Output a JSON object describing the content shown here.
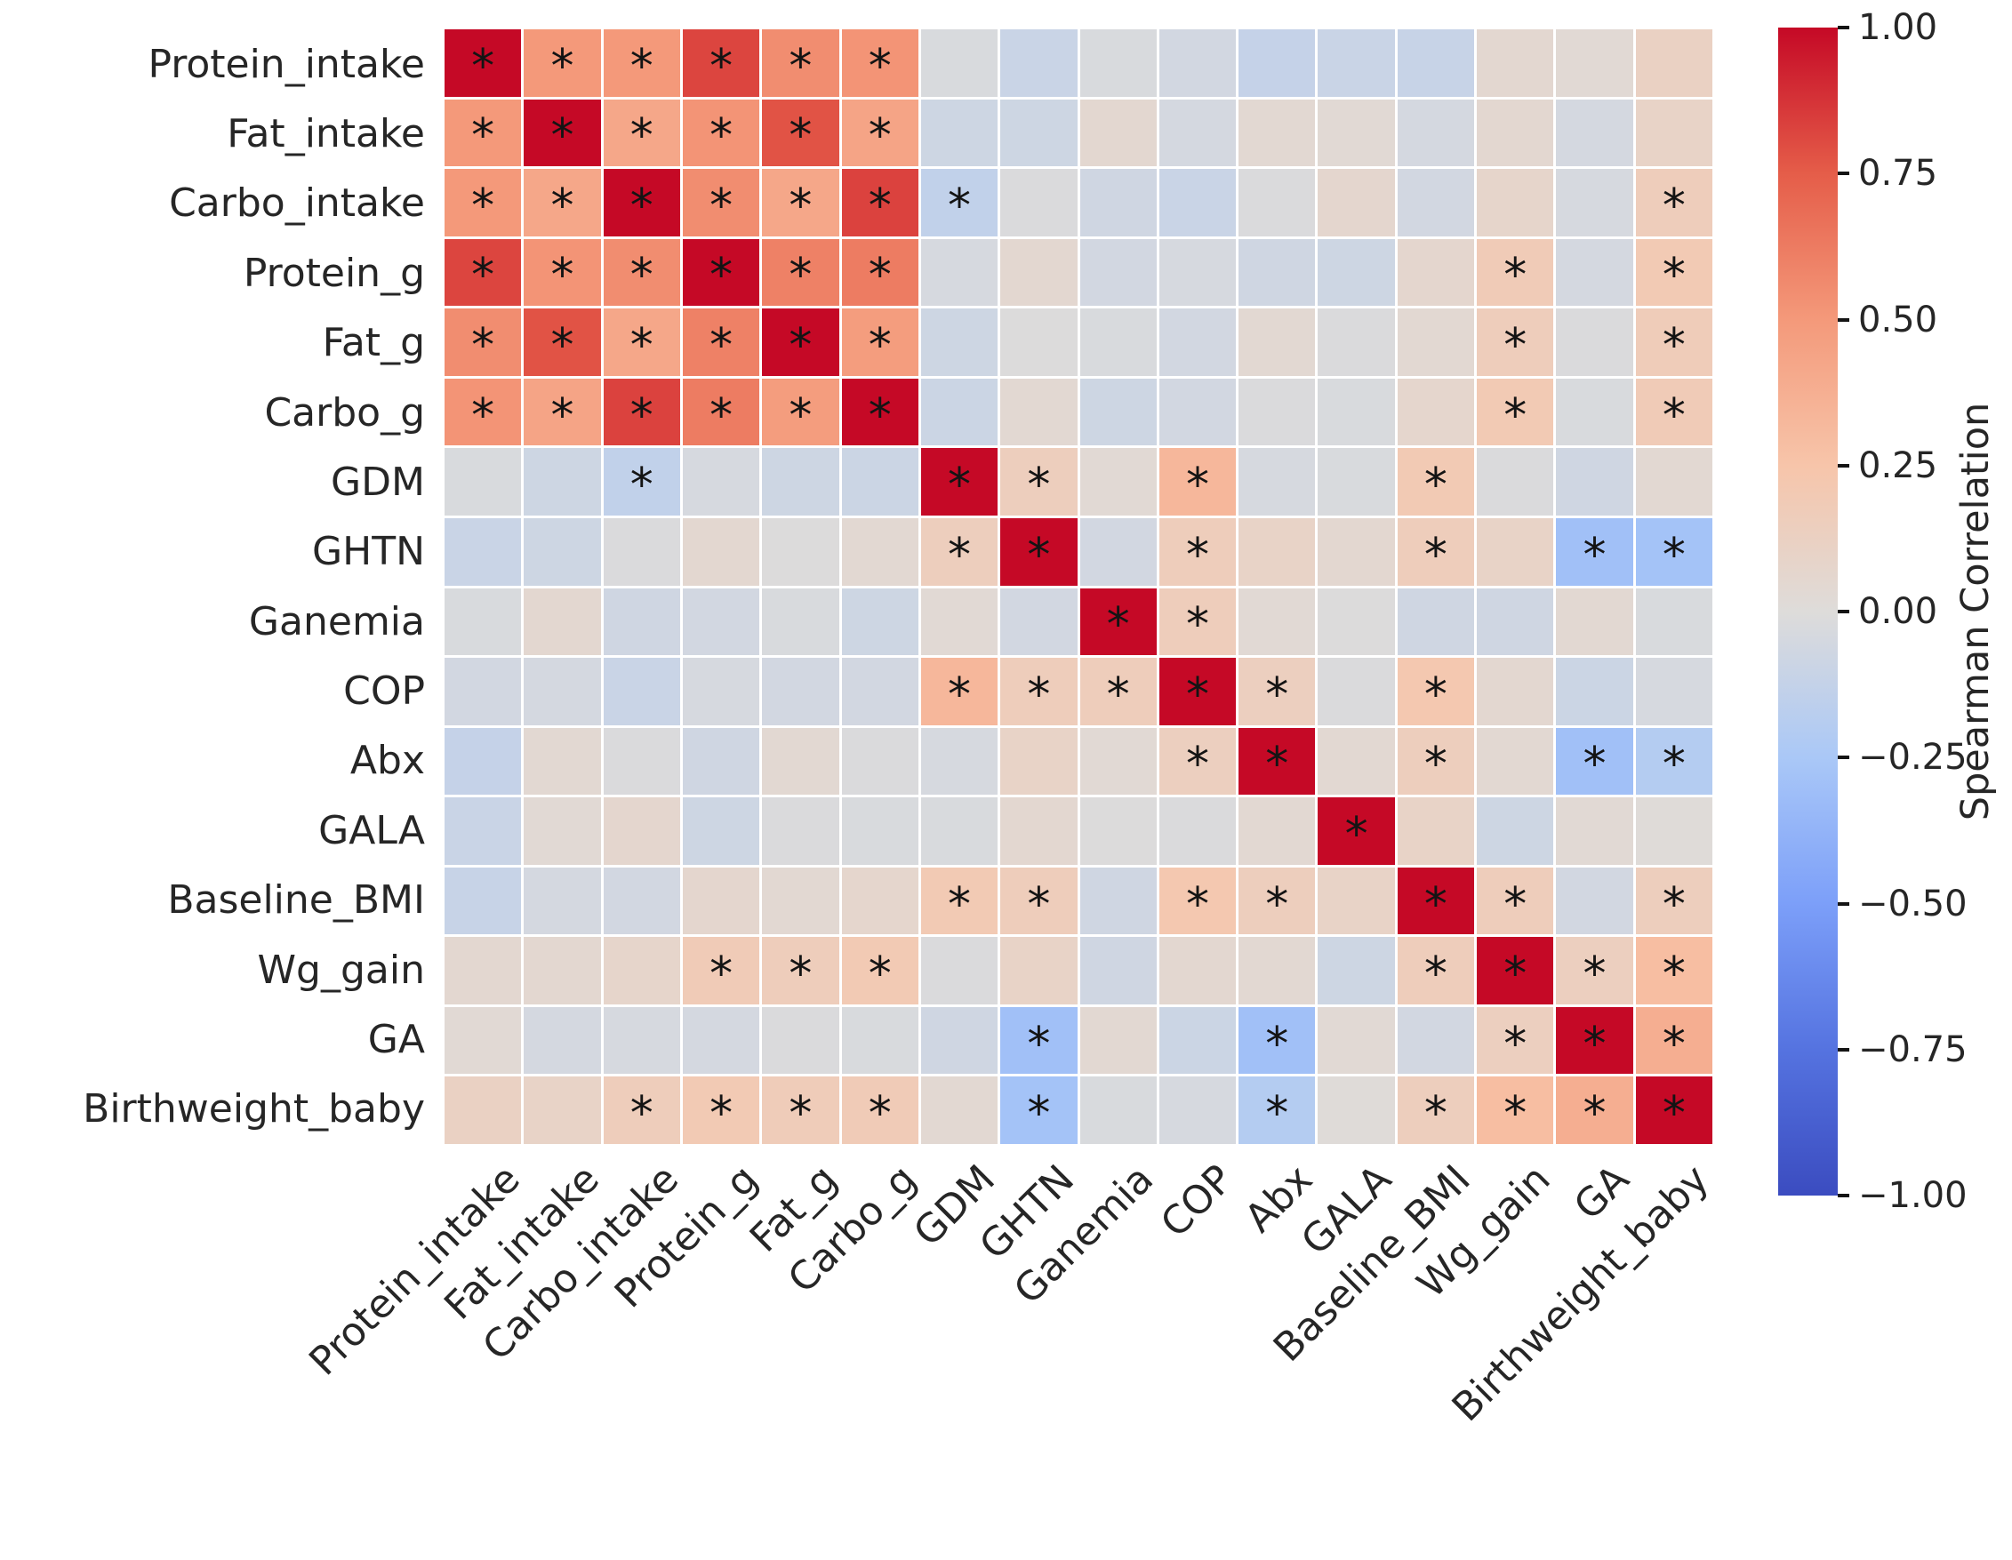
{
  "chart_data": {
    "type": "heatmap",
    "title": "",
    "variables": [
      "Protein_intake",
      "Fat_intake",
      "Carbo_intake",
      "Protein_g",
      "Fat_g",
      "Carbo_g",
      "GDM",
      "GHTN",
      "Ganemia",
      "COP",
      "Abx",
      "GALA",
      "Baseline_BMI",
      "Wg_gain",
      "GA",
      "Birthweight_baby"
    ],
    "matrix": [
      [
        1.0,
        0.5,
        0.5,
        0.82,
        0.55,
        0.52,
        -0.03,
        -0.1,
        -0.03,
        -0.06,
        -0.12,
        -0.1,
        -0.11,
        0.05,
        0.03,
        0.12
      ],
      [
        0.5,
        1.0,
        0.42,
        0.52,
        0.78,
        0.44,
        -0.08,
        -0.08,
        0.05,
        -0.05,
        0.04,
        0.03,
        -0.05,
        0.05,
        -0.05,
        0.1
      ],
      [
        0.5,
        0.42,
        1.0,
        0.55,
        0.42,
        0.83,
        -0.14,
        -0.02,
        -0.07,
        -0.1,
        -0.02,
        0.06,
        -0.06,
        0.08,
        -0.04,
        0.16
      ],
      [
        0.82,
        0.52,
        0.55,
        1.0,
        0.6,
        0.62,
        -0.04,
        0.05,
        -0.06,
        -0.04,
        -0.07,
        -0.08,
        0.06,
        0.18,
        -0.05,
        0.2
      ],
      [
        0.55,
        0.78,
        0.42,
        0.6,
        1.0,
        0.48,
        -0.08,
        -0.01,
        -0.03,
        -0.06,
        0.04,
        -0.02,
        0.04,
        0.16,
        -0.02,
        0.17
      ],
      [
        0.52,
        0.44,
        0.83,
        0.62,
        0.48,
        1.0,
        -0.09,
        0.04,
        -0.08,
        -0.06,
        -0.02,
        -0.03,
        0.07,
        0.2,
        -0.03,
        0.18
      ],
      [
        -0.03,
        -0.08,
        -0.14,
        -0.04,
        -0.08,
        -0.09,
        1.0,
        0.15,
        0.03,
        0.33,
        -0.04,
        -0.03,
        0.2,
        -0.02,
        -0.07,
        0.04
      ],
      [
        -0.1,
        -0.08,
        -0.02,
        0.05,
        -0.01,
        0.04,
        0.15,
        1.0,
        -0.06,
        0.16,
        0.1,
        0.05,
        0.16,
        0.1,
        -0.3,
        -0.28
      ],
      [
        -0.03,
        0.05,
        -0.07,
        -0.06,
        -0.03,
        -0.08,
        0.03,
        -0.06,
        1.0,
        0.16,
        0.03,
        -0.01,
        -0.07,
        -0.07,
        0.04,
        -0.03
      ],
      [
        -0.06,
        -0.05,
        -0.1,
        -0.04,
        -0.06,
        -0.06,
        0.33,
        0.16,
        0.16,
        1.0,
        0.14,
        -0.02,
        0.22,
        0.05,
        -0.09,
        -0.04
      ],
      [
        -0.12,
        0.04,
        -0.02,
        -0.07,
        0.04,
        -0.02,
        -0.04,
        0.1,
        0.03,
        0.14,
        1.0,
        0.04,
        0.15,
        0.04,
        -0.3,
        -0.2
      ],
      [
        -0.1,
        0.03,
        0.06,
        -0.08,
        -0.02,
        -0.03,
        -0.03,
        0.05,
        -0.01,
        -0.02,
        0.04,
        1.0,
        0.1,
        -0.08,
        0.03,
        0.01
      ],
      [
        -0.11,
        -0.05,
        -0.06,
        0.06,
        0.04,
        0.07,
        0.2,
        0.16,
        -0.07,
        0.22,
        0.15,
        0.1,
        1.0,
        0.16,
        -0.06,
        0.15
      ],
      [
        0.05,
        0.05,
        0.08,
        0.18,
        0.16,
        0.2,
        -0.02,
        0.1,
        -0.07,
        0.05,
        0.04,
        -0.08,
        0.16,
        1.0,
        0.14,
        0.29
      ],
      [
        0.03,
        -0.05,
        -0.04,
        -0.05,
        -0.02,
        -0.03,
        -0.07,
        -0.3,
        0.04,
        -0.09,
        -0.3,
        0.03,
        -0.06,
        0.14,
        1.0,
        0.38
      ],
      [
        0.12,
        0.1,
        0.16,
        0.2,
        0.17,
        0.18,
        0.04,
        -0.28,
        -0.03,
        -0.04,
        -0.2,
        0.01,
        0.15,
        0.29,
        0.38,
        1.0
      ]
    ],
    "annotation_symbol": "*",
    "diagonal_significant": true,
    "significant_pairs": [
      [
        0,
        1
      ],
      [
        0,
        2
      ],
      [
        0,
        3
      ],
      [
        0,
        4
      ],
      [
        0,
        5
      ],
      [
        1,
        2
      ],
      [
        1,
        3
      ],
      [
        1,
        4
      ],
      [
        1,
        5
      ],
      [
        2,
        3
      ],
      [
        2,
        4
      ],
      [
        2,
        5
      ],
      [
        2,
        6
      ],
      [
        2,
        15
      ],
      [
        3,
        4
      ],
      [
        3,
        5
      ],
      [
        3,
        13
      ],
      [
        3,
        15
      ],
      [
        4,
        5
      ],
      [
        4,
        13
      ],
      [
        4,
        15
      ],
      [
        5,
        13
      ],
      [
        5,
        15
      ],
      [
        6,
        7
      ],
      [
        6,
        9
      ],
      [
        6,
        12
      ],
      [
        7,
        9
      ],
      [
        7,
        12
      ],
      [
        7,
        14
      ],
      [
        7,
        15
      ],
      [
        8,
        9
      ],
      [
        9,
        10
      ],
      [
        9,
        12
      ],
      [
        10,
        12
      ],
      [
        10,
        14
      ],
      [
        10,
        15
      ],
      [
        12,
        13
      ],
      [
        12,
        15
      ],
      [
        13,
        14
      ],
      [
        13,
        15
      ],
      [
        14,
        15
      ]
    ],
    "colorbar": {
      "label": "Spearman Correlation",
      "ticks": [
        "1.00",
        "0.75",
        "0.50",
        "0.25",
        "0.00",
        "−0.25",
        "−0.50",
        "−0.75",
        "−1.00"
      ],
      "vmin": -1.0,
      "vmax": 1.0
    },
    "colormap": {
      "name": "coolwarm",
      "anchors": [
        {
          "t": 0.0,
          "rgb": [
            59,
            76,
            192
          ]
        },
        {
          "t": 0.125,
          "rgb": [
            85,
            115,
            224
          ]
        },
        {
          "t": 0.25,
          "rgb": [
            124,
            159,
            249
          ]
        },
        {
          "t": 0.375,
          "rgb": [
            170,
            200,
            247
          ]
        },
        {
          "t": 0.5,
          "rgb": [
            222,
            220,
            218
          ]
        },
        {
          "t": 0.625,
          "rgb": [
            247,
            197,
            170
          ]
        },
        {
          "t": 0.75,
          "rgb": [
            244,
            153,
            122
          ]
        },
        {
          "t": 0.875,
          "rgb": [
            229,
            93,
            73
          ]
        },
        {
          "t": 1.0,
          "rgb": [
            197,
            9,
            38
          ]
        }
      ]
    },
    "layout": {
      "grid_rows": 16,
      "grid_cols": 16,
      "x_tick_rotation_deg": 45,
      "legend_position": "right",
      "background": "#ffffff"
    }
  }
}
